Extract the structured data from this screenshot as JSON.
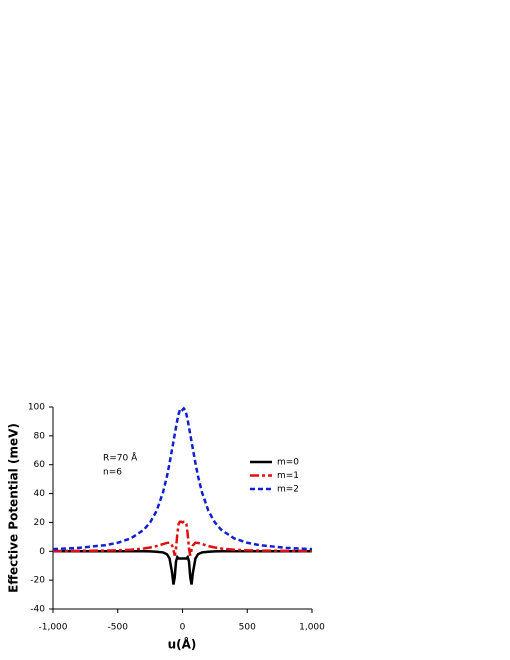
{
  "chart_data": {
    "type": "line",
    "xlabel": "u(Å)",
    "ylabel": "Effective Potential (meV)",
    "annotations": [
      "R=70 Å",
      "n=6"
    ],
    "x": [
      -1000,
      -800,
      -600,
      -500,
      -400,
      -300,
      -250,
      -200,
      -150,
      -120,
      -100,
      -80,
      -70,
      -60,
      -50,
      -40,
      -30,
      -20,
      -10,
      0,
      10,
      20,
      30,
      40,
      50,
      60,
      70,
      80,
      100,
      120,
      150,
      200,
      250,
      300,
      400,
      500,
      600,
      800,
      1000
    ],
    "series": [
      {
        "name": "m=0",
        "color": "#000000",
        "dash": "solid",
        "values": [
          0,
          0,
          0,
          0,
          0,
          0,
          -0.1,
          -0.3,
          -0.8,
          -2,
          -5,
          -15,
          -23,
          -18,
          -7,
          -4,
          -5,
          -5,
          -5,
          -5,
          -5,
          -5,
          -5,
          -4,
          -7,
          -18,
          -23,
          -15,
          -5,
          -2,
          -0.8,
          -0.3,
          -0.1,
          0,
          0,
          0,
          0,
          0,
          0
        ]
      },
      {
        "name": "m=1",
        "color": "#e01010",
        "dash": "dashdot",
        "values": [
          0.2,
          0.3,
          0.5,
          0.7,
          1.1,
          1.9,
          2.6,
          3.6,
          5,
          5.8,
          6,
          4,
          1,
          -3,
          2,
          12,
          19,
          20.5,
          20.5,
          20,
          20.5,
          20.5,
          19,
          12,
          2,
          -3,
          1,
          4,
          6,
          5.8,
          5,
          3.6,
          2.6,
          1.9,
          1.1,
          0.7,
          0.5,
          0.3,
          0.2
        ]
      },
      {
        "name": "m=2",
        "color": "#1020d0",
        "dash": "dash",
        "values": [
          1.5,
          2.4,
          4.2,
          5.9,
          8.9,
          14.8,
          20,
          28,
          41,
          52,
          61,
          71,
          76,
          81,
          86,
          91,
          95,
          98,
          99,
          98,
          99,
          98,
          95,
          91,
          86,
          81,
          76,
          71,
          61,
          52,
          41,
          28,
          20,
          14.8,
          8.9,
          5.9,
          4.2,
          2.4,
          1.5
        ]
      }
    ],
    "xlim": [
      -1000,
      1000
    ],
    "xticks": [
      {
        "value": -1000,
        "label": "-1,000"
      },
      -500,
      0,
      500,
      {
        "value": 1000,
        "label": "1,000"
      }
    ],
    "ylim": [
      -40,
      100
    ],
    "yticks": [
      -40,
      -20,
      0,
      20,
      40,
      60,
      80,
      100
    ],
    "legend": "upper-right"
  }
}
